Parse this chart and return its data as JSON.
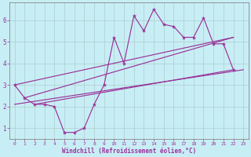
{
  "bg_color": "#c8eef5",
  "line_color": "#993399",
  "grid_color": "#aacccc",
  "xlabel": "Windchill (Refroidissement éolien,°C)",
  "xticks": [
    0,
    1,
    2,
    3,
    4,
    5,
    6,
    7,
    8,
    9,
    10,
    11,
    12,
    13,
    14,
    15,
    16,
    17,
    18,
    19,
    20,
    21,
    22,
    23
  ],
  "yticks": [
    1,
    2,
    3,
    4,
    5,
    6
  ],
  "ylim": [
    0.5,
    6.8
  ],
  "xlim": [
    -0.5,
    23.5
  ],
  "main_x": [
    0,
    1,
    2,
    3,
    4,
    5,
    6,
    7,
    8,
    9,
    10,
    11,
    12,
    13,
    14,
    15,
    16,
    17,
    18,
    19,
    20,
    21,
    22
  ],
  "main_y": [
    3.0,
    2.4,
    2.1,
    2.1,
    2.0,
    0.8,
    0.8,
    1.0,
    2.1,
    3.0,
    5.2,
    4.0,
    6.2,
    5.5,
    6.5,
    5.8,
    5.7,
    5.2,
    5.2,
    6.1,
    4.9,
    4.9,
    3.7
  ],
  "line_upper1": {
    "x": [
      0,
      22
    ],
    "y": [
      3.0,
      5.2
    ]
  },
  "line_upper2": {
    "x": [
      1,
      22
    ],
    "y": [
      2.4,
      5.2
    ]
  },
  "line_lower1": {
    "x": [
      0,
      23
    ],
    "y": [
      2.1,
      3.7
    ]
  },
  "line_lower2": {
    "x": [
      2,
      22
    ],
    "y": [
      2.1,
      3.7
    ]
  }
}
